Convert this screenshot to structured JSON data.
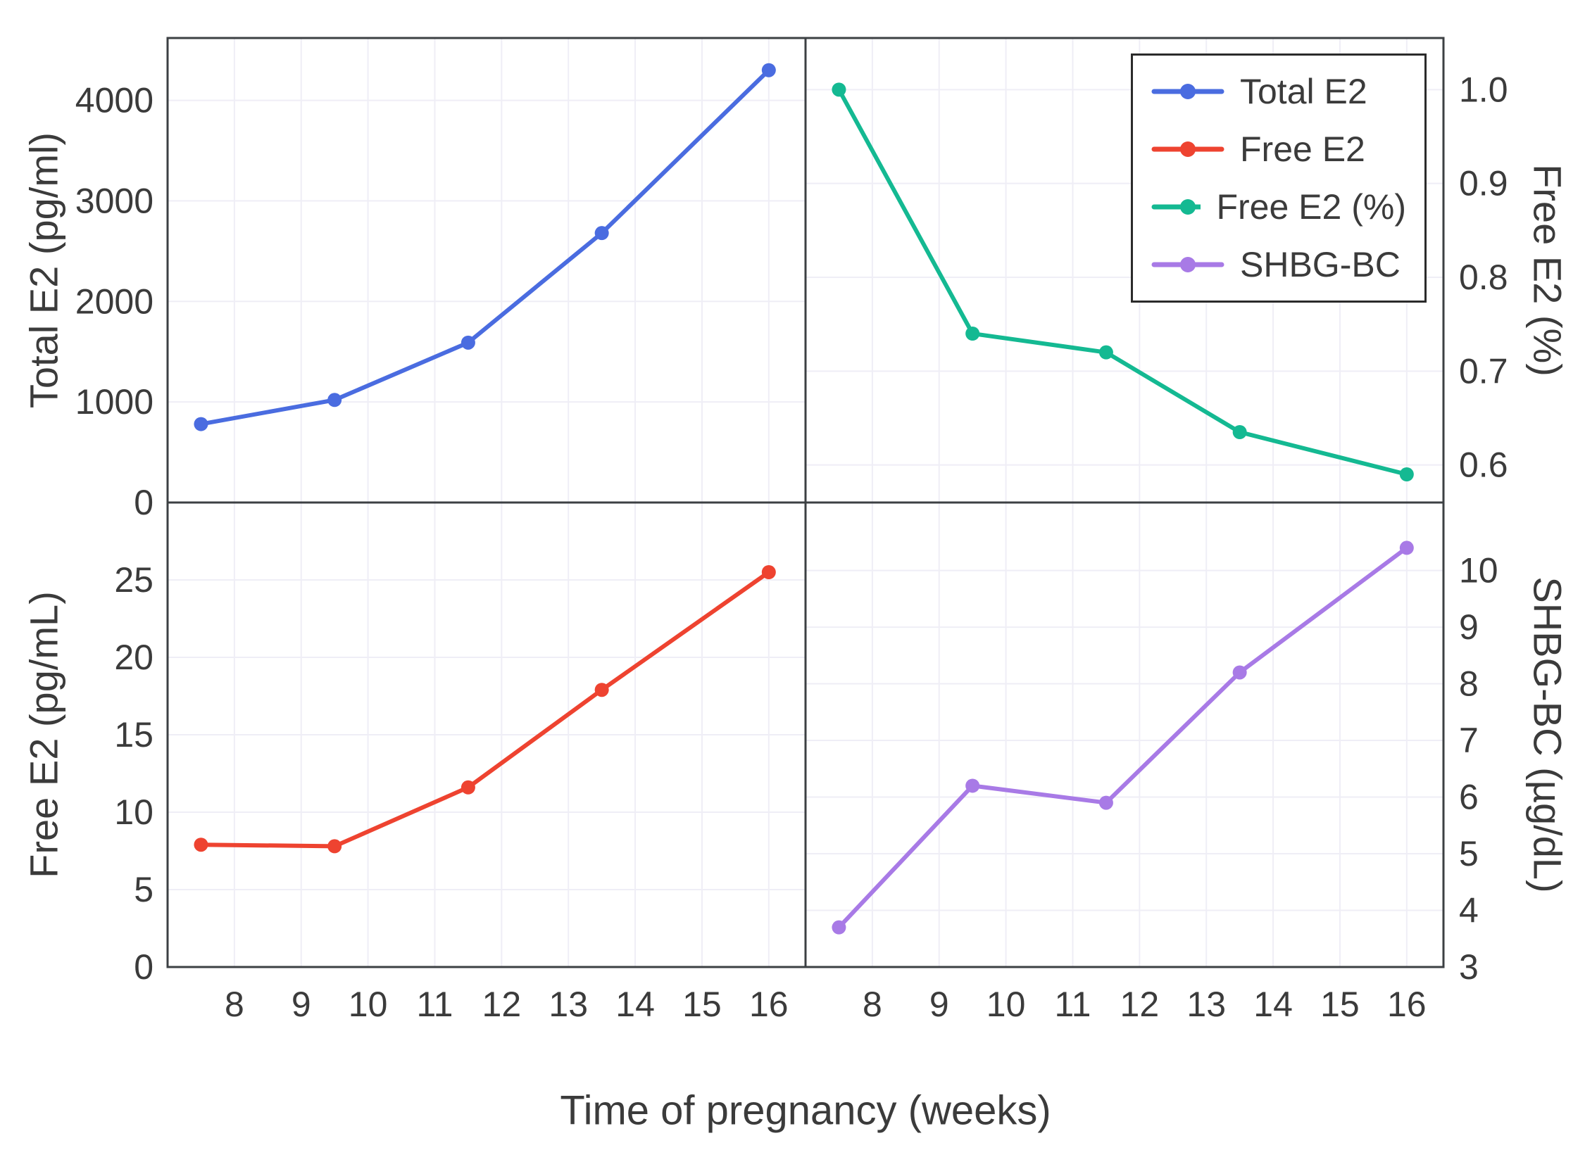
{
  "figure": {
    "background": "#ffffff",
    "border_color": "#3c4043",
    "grid_color": "#efeef6",
    "text_color": "#3b3b3b"
  },
  "chart_data": {
    "type": "line",
    "x_label": "Time of pregnancy (weeks)",
    "x": [
      7.5,
      9.5,
      11.5,
      13.5,
      16
    ],
    "x_ticks": [
      8,
      9,
      10,
      11,
      12,
      13,
      14,
      15,
      16
    ],
    "xlim": [
      7.0,
      16.55
    ],
    "grid": true,
    "legend_position": "top-right-panel",
    "panels": [
      {
        "id": "total-e2",
        "row": 0,
        "col": 0,
        "series": "Total E2",
        "ylabel": "Total E2 (pg/ml)",
        "axis_side": "left",
        "color": "#4a6ce0",
        "values": [
          780,
          1020,
          1590,
          2680,
          4300
        ],
        "ylim": [
          0,
          4620
        ],
        "yticks": [
          0,
          1000,
          2000,
          3000,
          4000
        ],
        "ytick_labels": [
          "0",
          "1000",
          "2000",
          "3000",
          "4000"
        ]
      },
      {
        "id": "free-e2-pct",
        "row": 0,
        "col": 1,
        "series": "Free E2 (%)",
        "ylabel": "Free E2 (%)",
        "axis_side": "right",
        "color": "#14b992",
        "values": [
          1.0,
          0.74,
          0.72,
          0.635,
          0.59
        ],
        "ylim": [
          0.56,
          1.055
        ],
        "yticks": [
          0.6,
          0.7,
          0.8,
          0.9,
          1.0
        ],
        "ytick_labels": [
          "0.6",
          "0.7",
          "0.8",
          "0.9",
          "1.0"
        ]
      },
      {
        "id": "free-e2",
        "row": 1,
        "col": 0,
        "series": "Free E2",
        "ylabel": "Free E2 (pg/mL)",
        "axis_side": "left",
        "color": "#ee4330",
        "values": [
          7.9,
          7.8,
          11.6,
          17.9,
          25.5
        ],
        "ylim": [
          0,
          30
        ],
        "yticks": [
          0,
          5,
          10,
          15,
          20,
          25
        ],
        "ytick_labels": [
          "0",
          "5",
          "10",
          "15",
          "20",
          "25"
        ]
      },
      {
        "id": "shbg-bc",
        "row": 1,
        "col": 1,
        "series": "SHBG-BC",
        "ylabel": "SHBG-BC (µg/dL)",
        "axis_side": "right",
        "color": "#a87ae6",
        "values": [
          3.7,
          6.2,
          5.9,
          8.2,
          10.4
        ],
        "ylim": [
          3,
          11.2
        ],
        "yticks": [
          3,
          4,
          5,
          6,
          7,
          8,
          9,
          10
        ],
        "ytick_labels": [
          "3",
          "4",
          "5",
          "6",
          "7",
          "8",
          "9",
          "10"
        ]
      }
    ],
    "legend": {
      "entries": [
        {
          "label": "Total E2",
          "color": "#4a6ce0"
        },
        {
          "label": "Free E2",
          "color": "#ee4330"
        },
        {
          "label": "Free E2 (%)",
          "color": "#14b992"
        },
        {
          "label": "SHBG-BC",
          "color": "#a87ae6"
        }
      ]
    }
  }
}
